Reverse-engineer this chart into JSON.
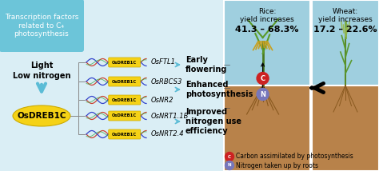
{
  "bg_color": "#daeef5",
  "fig_width": 4.74,
  "fig_height": 2.14,
  "dpi": 100,
  "box_title": "Transcription factors\nrelated to C₄\nphotosynthesis",
  "box_bg": "#6cc5d9",
  "box_text_color": "white",
  "light_label": "Light",
  "nitrogen_label": "Low nitrogen",
  "arrow_color": "#5bbcd6",
  "osdrebic_label": "OsDREB1C",
  "osdrebic_bg": "#f5d216",
  "genes": [
    "OsFTL1",
    "OsRBCS3",
    "OsNR2",
    "OsNRT1.1B",
    "OsNRT2.4"
  ],
  "effects": [
    "Early\nflowering",
    "Enhanced\nphotosynthesis",
    "Improved\nnitrogen use\nefficiency"
  ],
  "rice_title_line1": "Rice:",
  "rice_title_line2": "yield increases",
  "rice_bold": "41.3 – 68.3%",
  "wheat_title_line1": "Wheat:",
  "wheat_title_line2": "yield increases",
  "wheat_bold": "17.2 – 22.6%",
  "rice_panel_bg_top": "#9fcfdf",
  "rice_panel_bg_soil": "#b8824a",
  "wheat_panel_bg_top": "#9fcfdf",
  "wheat_panel_bg_soil": "#b8824a",
  "legend_c_label": "Carbon assimilated by photosynthesis",
  "legend_n_label": "Nitrogen taken up by roots",
  "legend_c_color": "#cc2222",
  "legend_n_color": "#7777bb",
  "title_fontsize": 6.5,
  "gene_fontsize": 6.0,
  "effect_fontsize": 7.0,
  "yield_fontsize": 6.5,
  "yield_bold_fontsize": 8.0,
  "legend_fontsize": 5.5,
  "osdrebic_fontsize": 7.5
}
